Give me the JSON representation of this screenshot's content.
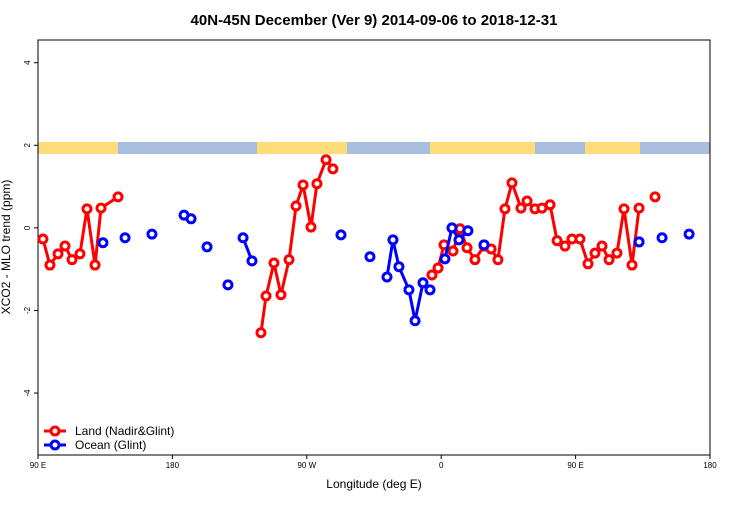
{
  "chart_data": {
    "type": "line",
    "title": "40N-45N December (Ver 9)   2014-09-06 to 2018-12-31",
    "x_label": "Longitude (deg E)",
    "y_label": "XCO2 - MLO trend (ppm)",
    "xlim": [
      90,
      540
    ],
    "ylim": [
      -5.5,
      4.55
    ],
    "xticks": [
      {
        "value": 90,
        "label": "90 E"
      },
      180,
      {
        "value": 270,
        "label": "90 W"
      },
      {
        "value": 360,
        "label": "0"
      },
      {
        "value": 450,
        "label": "90 E"
      },
      {
        "value": 540,
        "label": "180"
      }
    ],
    "yticks": [
      -4,
      -2,
      0,
      2,
      4
    ],
    "legend": "bottomleft",
    "series": [
      {
        "name": "Land (Nadir&Glint)",
        "color": "#ff0000",
        "x": [
          93.3,
          98.0,
          103.4,
          108.1,
          112.8,
          118.1,
          122.8,
          128.2,
          132.2,
          143.6,
          null,
          239.3,
          242.7,
          248.0,
          252.7,
          258.1,
          262.8,
          267.5,
          272.8,
          276.8,
          282.9,
          287.5,
          null,
          353.8,
          357.9,
          361.9,
          367.9,
          372.6,
          377.3,
          382.6,
          388.7,
          393.4,
          398.0,
          402.7,
          407.4,
          413.4,
          417.5,
          422.8,
          427.5,
          432.9,
          437.6,
          442.9,
          447.6,
          452.9,
          458.3,
          463.0,
          467.7,
          472.4,
          477.7,
          482.4,
          487.8,
          492.5,
          null,
          503.2
        ],
        "values": [
          -0.27,
          -0.9,
          -0.63,
          -0.44,
          -0.77,
          -0.63,
          0.46,
          -0.9,
          0.48,
          0.75,
          null,
          -2.54,
          -1.65,
          -0.85,
          -1.62,
          -0.77,
          0.53,
          1.04,
          0.02,
          1.07,
          1.65,
          1.43,
          null,
          -1.14,
          -0.97,
          -0.41,
          -0.56,
          -0.02,
          -0.48,
          -0.77,
          -0.44,
          -0.51,
          -0.77,
          0.46,
          1.09,
          0.48,
          0.65,
          0.46,
          0.48,
          0.56,
          -0.31,
          -0.44,
          -0.27,
          -0.27,
          -0.87,
          -0.61,
          -0.44,
          -0.77,
          -0.61,
          0.46,
          -0.9,
          0.48,
          null,
          0.75
        ]
      },
      {
        "name": "Ocean (Glint)",
        "color": "#0000ff",
        "x": [
          133.5,
          null,
          148.3,
          null,
          166.3,
          null,
          187.8,
          192.5,
          null,
          203.2,
          null,
          217.2,
          null,
          227.3,
          233.3,
          null,
          292.9,
          null,
          312.3,
          null,
          323.7,
          327.7,
          331.7,
          338.4,
          342.5,
          347.8,
          352.5,
          null,
          362.5,
          367.2,
          371.9,
          377.9,
          null,
          388.7,
          null,
          492.5,
          null,
          507.9,
          null,
          526.0
        ],
        "values": [
          -0.36,
          null,
          -0.24,
          null,
          -0.15,
          null,
          0.31,
          0.22,
          null,
          -0.46,
          null,
          -1.38,
          null,
          -0.24,
          -0.8,
          null,
          -0.17,
          null,
          -0.7,
          null,
          -1.19,
          -0.29,
          -0.94,
          -1.5,
          -2.25,
          -1.33,
          -1.5,
          null,
          -0.75,
          0.0,
          -0.29,
          -0.07,
          null,
          -0.41,
          null,
          -0.34,
          null,
          -0.24,
          null,
          -0.15
        ]
      }
    ]
  }
}
